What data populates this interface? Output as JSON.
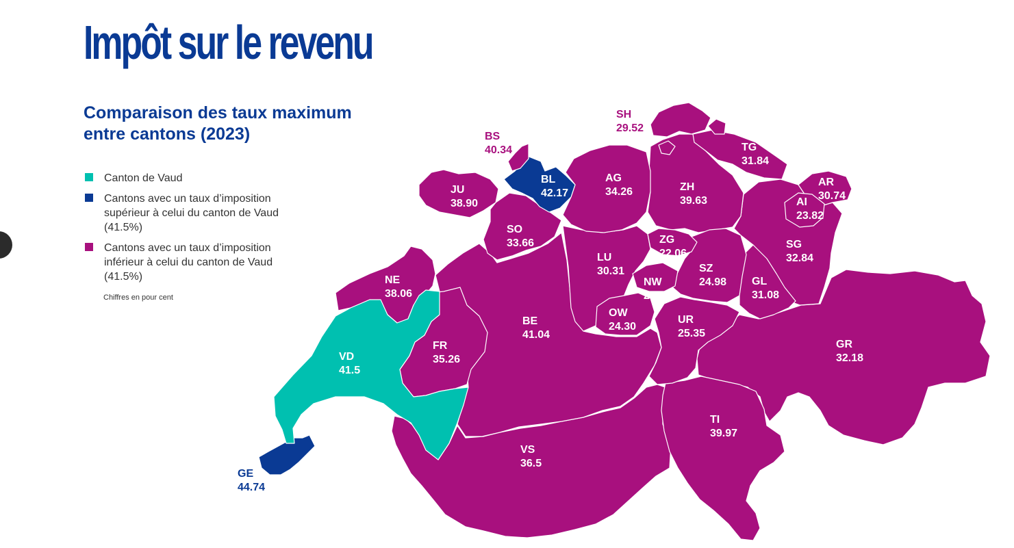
{
  "title": "Impôt sur le revenu",
  "subtitle": "Comparaison des taux maximum entre cantons (2023)",
  "colors": {
    "vaud": "#00c0b0",
    "higher": "#0a3a94",
    "lower": "#a8107e",
    "title": "#0a3a94"
  },
  "legend": [
    {
      "key": "vaud",
      "label": "Canton de Vaud"
    },
    {
      "key": "higher",
      "label": "Cantons avec un taux d’imposition supérieur à celui du canton de Vaud (41.5%)"
    },
    {
      "key": "lower",
      "label": "Cantons avec un taux d’imposition inférieur à celui du canton de Vaud (41.5%)"
    }
  ],
  "note": "Chiffres en pour cent",
  "cantons": [
    {
      "code": "VD",
      "value": "41.5",
      "category": "vaud"
    },
    {
      "code": "GE",
      "value": "44.74",
      "category": "higher"
    },
    {
      "code": "BS",
      "value": "40.34",
      "category": "lower"
    },
    {
      "code": "BL",
      "value": "42.17",
      "category": "higher"
    },
    {
      "code": "SH",
      "value": "29.52",
      "category": "lower"
    },
    {
      "code": "TG",
      "value": "31.84",
      "category": "lower"
    },
    {
      "code": "JU",
      "value": "38.90",
      "category": "lower"
    },
    {
      "code": "AG",
      "value": "34.26",
      "category": "lower"
    },
    {
      "code": "ZH",
      "value": "39.63",
      "category": "lower"
    },
    {
      "code": "AR",
      "value": "30.74",
      "category": "lower"
    },
    {
      "code": "AI",
      "value": "23.82",
      "category": "lower"
    },
    {
      "code": "SO",
      "value": "33.66",
      "category": "lower"
    },
    {
      "code": "ZG",
      "value": "22.06",
      "category": "lower"
    },
    {
      "code": "SG",
      "value": "32.84",
      "category": "lower"
    },
    {
      "code": "LU",
      "value": "30.31",
      "category": "lower"
    },
    {
      "code": "SZ",
      "value": "24.98",
      "category": "lower"
    },
    {
      "code": "NW",
      "value": "24.73",
      "category": "lower"
    },
    {
      "code": "NE",
      "value": "38.06",
      "category": "lower"
    },
    {
      "code": "GL",
      "value": "31.08",
      "category": "lower"
    },
    {
      "code": "OW",
      "value": "24.30",
      "category": "lower"
    },
    {
      "code": "BE",
      "value": "41.04",
      "category": "lower"
    },
    {
      "code": "UR",
      "value": "25.35",
      "category": "lower"
    },
    {
      "code": "FR",
      "value": "35.26",
      "category": "lower"
    },
    {
      "code": "GR",
      "value": "32.18",
      "category": "lower"
    },
    {
      "code": "TI",
      "value": "39.97",
      "category": "lower"
    },
    {
      "code": "VS",
      "value": "36.5",
      "category": "lower"
    }
  ]
}
